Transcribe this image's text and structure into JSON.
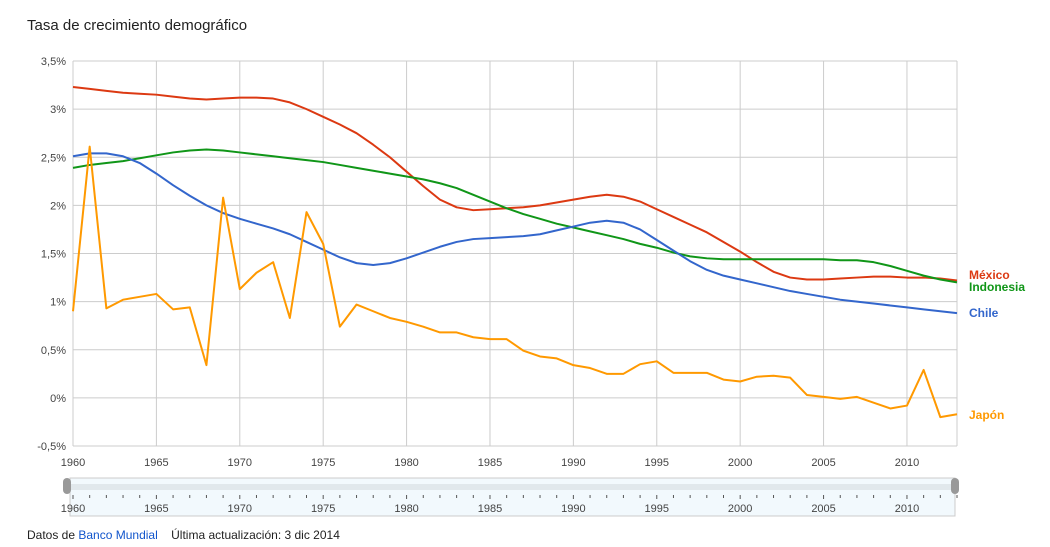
{
  "chart_data": {
    "type": "line",
    "title": "Tasa de crecimiento demográfico",
    "xlabel": "",
    "ylabel": "",
    "xlim": [
      1960,
      2013
    ],
    "ylim": [
      -0.5,
      3.5
    ],
    "y_ticks": [
      "-0,5%",
      "0%",
      "0,5%",
      "1%",
      "1,5%",
      "2%",
      "2,5%",
      "3%",
      "3,5%"
    ],
    "x_ticks": [
      "1960",
      "1965",
      "1970",
      "1975",
      "1980",
      "1985",
      "1990",
      "1995",
      "2000",
      "2005",
      "2010"
    ],
    "grid": true,
    "legend": "right, end-of-line labels",
    "x": [
      1960,
      1961,
      1962,
      1963,
      1964,
      1965,
      1966,
      1967,
      1968,
      1969,
      1970,
      1971,
      1972,
      1973,
      1974,
      1975,
      1976,
      1977,
      1978,
      1979,
      1980,
      1981,
      1982,
      1983,
      1984,
      1985,
      1986,
      1987,
      1988,
      1989,
      1990,
      1991,
      1992,
      1993,
      1994,
      1995,
      1996,
      1997,
      1998,
      1999,
      2000,
      2001,
      2002,
      2003,
      2004,
      2005,
      2006,
      2007,
      2008,
      2009,
      2010,
      2011,
      2012,
      2013
    ],
    "series": [
      {
        "name": "México",
        "color": "#dc3912",
        "values": [
          3.23,
          3.21,
          3.19,
          3.17,
          3.16,
          3.15,
          3.13,
          3.11,
          3.1,
          3.11,
          3.12,
          3.12,
          3.11,
          3.07,
          3.0,
          2.92,
          2.84,
          2.75,
          2.63,
          2.5,
          2.35,
          2.2,
          2.06,
          1.98,
          1.95,
          1.96,
          1.97,
          1.98,
          2.0,
          2.03,
          2.06,
          2.09,
          2.11,
          2.09,
          2.04,
          1.96,
          1.88,
          1.8,
          1.72,
          1.62,
          1.52,
          1.41,
          1.31,
          1.25,
          1.23,
          1.23,
          1.24,
          1.25,
          1.26,
          1.26,
          1.25,
          1.25,
          1.24,
          1.22
        ]
      },
      {
        "name": "Indonesia",
        "color": "#109618",
        "values": [
          2.39,
          2.42,
          2.44,
          2.46,
          2.49,
          2.52,
          2.55,
          2.57,
          2.58,
          2.57,
          2.55,
          2.53,
          2.51,
          2.49,
          2.47,
          2.45,
          2.42,
          2.39,
          2.36,
          2.33,
          2.3,
          2.27,
          2.23,
          2.18,
          2.11,
          2.04,
          1.97,
          1.91,
          1.86,
          1.81,
          1.77,
          1.73,
          1.69,
          1.65,
          1.6,
          1.56,
          1.51,
          1.47,
          1.45,
          1.44,
          1.44,
          1.44,
          1.44,
          1.44,
          1.44,
          1.44,
          1.43,
          1.43,
          1.41,
          1.37,
          1.32,
          1.27,
          1.23,
          1.2
        ]
      },
      {
        "name": "Chile",
        "color": "#3366cc",
        "values": [
          2.51,
          2.54,
          2.54,
          2.51,
          2.44,
          2.33,
          2.21,
          2.1,
          2.0,
          1.92,
          1.86,
          1.81,
          1.76,
          1.7,
          1.62,
          1.54,
          1.46,
          1.4,
          1.38,
          1.4,
          1.45,
          1.51,
          1.57,
          1.62,
          1.65,
          1.66,
          1.67,
          1.68,
          1.7,
          1.74,
          1.78,
          1.82,
          1.84,
          1.82,
          1.75,
          1.64,
          1.53,
          1.42,
          1.33,
          1.27,
          1.23,
          1.19,
          1.15,
          1.11,
          1.08,
          1.05,
          1.02,
          1.0,
          0.98,
          0.96,
          0.94,
          0.92,
          0.9,
          0.88
        ]
      },
      {
        "name": "Japón",
        "color": "#ff9900",
        "values": [
          0.9,
          2.61,
          0.93,
          1.02,
          1.05,
          1.08,
          0.92,
          0.94,
          0.34,
          2.08,
          1.13,
          1.3,
          1.41,
          0.83,
          1.93,
          1.6,
          0.74,
          0.97,
          0.9,
          0.83,
          0.79,
          0.74,
          0.68,
          0.68,
          0.63,
          0.61,
          0.61,
          0.49,
          0.43,
          0.41,
          0.34,
          0.31,
          0.25,
          0.25,
          0.35,
          0.38,
          0.26,
          0.26,
          0.26,
          0.19,
          0.17,
          0.22,
          0.23,
          0.21,
          0.03,
          0.01,
          -0.01,
          0.01,
          -0.05,
          -0.11,
          -0.08,
          0.29,
          -0.2,
          -0.17
        ]
      }
    ]
  },
  "slider": {
    "ticks": [
      "1960",
      "1965",
      "1970",
      "1975",
      "1980",
      "1985",
      "1990",
      "1995",
      "2000",
      "2005",
      "2010"
    ]
  },
  "footer": {
    "source_prefix": "Datos de",
    "source_link": "Banco Mundial",
    "updated": "Última actualización: 3 dic 2014"
  }
}
